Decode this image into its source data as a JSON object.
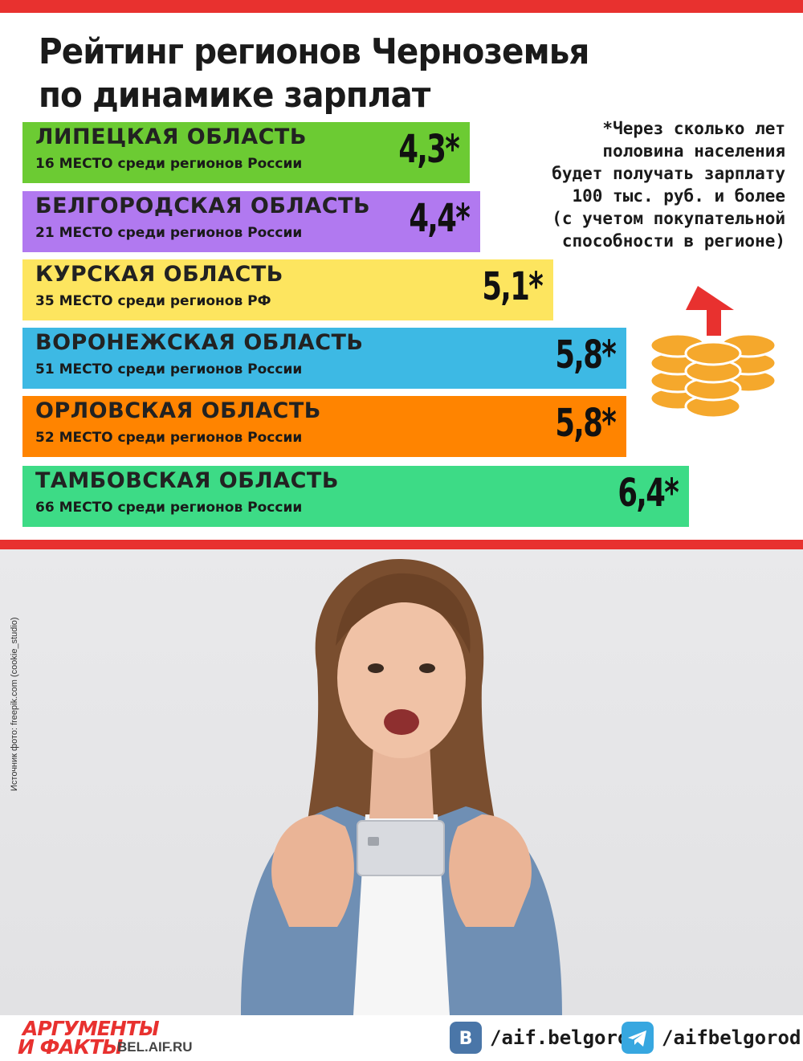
{
  "title": "Рейтинг регионов Черноземья по динамике зарплат",
  "note": "*Через сколько лет\nполовина населения\nбудет получать зарплату\n100 тыс. руб. и более\n(с учетом покупательной\nспособности в регионе)",
  "colors": {
    "accent": "#e8312f",
    "bars": [
      "#6ccb33",
      "#b179f0",
      "#fde55f",
      "#3db9e4",
      "#ff8400",
      "#3ddb86"
    ],
    "coin": "#f5a82c"
  },
  "chart_data": {
    "type": "bar",
    "orientation": "horizontal",
    "title": "Рейтинг регионов Черноземья по динамике зарплат",
    "categories": [
      "ЛИПЕЦКАЯ ОБЛАСТЬ",
      "БЕЛГОРОДСКАЯ ОБЛАСТЬ",
      "КУРСКАЯ ОБЛАСТЬ",
      "ВОРОНЕЖСКАЯ ОБЛАСТЬ",
      "ОРЛОВСКАЯ ОБЛАСТЬ",
      "ТАМБОВСКАЯ ОБЛАСТЬ"
    ],
    "values": [
      4.3,
      4.4,
      5.1,
      5.8,
      5.8,
      6.4
    ],
    "value_labels": [
      "4,3*",
      "4,4*",
      "5,1*",
      "5,8*",
      "5,8*",
      "6,4*"
    ],
    "rank_labels": [
      "16 МЕСТО среди регионов России",
      "21 МЕСТО среди регионов России",
      "35 МЕСТО среди регионов РФ",
      "51 МЕСТО среди регионов России",
      "52 МЕСТО среди регионов России",
      "66 МЕСТО среди регионов России"
    ]
  },
  "photo_credit": "Источник фото: freepik.com (cookie_studio)",
  "footer": {
    "logo_line1": "АРГУМЕНТЫ",
    "logo_line2": "И ФАКТЫ",
    "site": "BEL.AIF.RU",
    "social": [
      {
        "icon": "vk-icon",
        "handle": "/aif.belgorod",
        "color": "#4a76a8"
      },
      {
        "icon": "telegram-icon",
        "handle": "/aifbelgorod",
        "color": "#37a7e0"
      }
    ]
  }
}
